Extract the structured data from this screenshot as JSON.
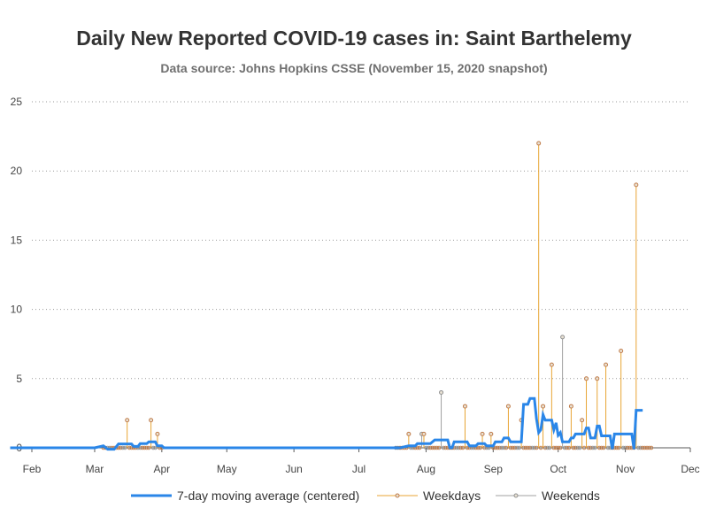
{
  "chart_data": {
    "type": "line",
    "title": "Daily New Reported COVID-19 cases in: Saint Barthelemy",
    "subtitle": "Data source: Johns Hopkins CSSE (November 15, 2020 snapshot)",
    "xlabel": "",
    "ylabel": "",
    "xlim": [
      "2020-02-01",
      "2020-12-01"
    ],
    "ylim": [
      0,
      25
    ],
    "y_ticks": [
      0,
      5,
      10,
      15,
      20,
      25
    ],
    "x_ticks": [
      {
        "date": "2020-02-01",
        "label": "Feb"
      },
      {
        "date": "2020-03-01",
        "label": "Mar"
      },
      {
        "date": "2020-04-01",
        "label": "Apr"
      },
      {
        "date": "2020-05-01",
        "label": "May"
      },
      {
        "date": "2020-06-01",
        "label": "Jun"
      },
      {
        "date": "2020-07-01",
        "label": "Jul"
      },
      {
        "date": "2020-08-01",
        "label": "Aug"
      },
      {
        "date": "2020-09-01",
        "label": "Sep"
      },
      {
        "date": "2020-10-01",
        "label": "Oct"
      },
      {
        "date": "2020-11-01",
        "label": "Nov"
      },
      {
        "date": "2020-12-01",
        "label": "Dec"
      }
    ],
    "grid": "horizontal dotted",
    "legend_position": "bottom",
    "series": [
      {
        "name": "7-day moving average (centered)",
        "style": "line",
        "color": "#2a86e8",
        "points": [
          [
            "2020-01-22",
            0
          ],
          [
            "2020-03-01",
            0
          ],
          [
            "2020-03-05",
            0.14
          ],
          [
            "2020-03-07",
            -0.1
          ],
          [
            "2020-03-10",
            -0.1
          ],
          [
            "2020-03-12",
            0.28
          ],
          [
            "2020-03-18",
            0.28
          ],
          [
            "2020-03-19",
            0.1
          ],
          [
            "2020-03-21",
            0.1
          ],
          [
            "2020-03-22",
            0.3
          ],
          [
            "2020-03-25",
            0.3
          ],
          [
            "2020-03-26",
            0.43
          ],
          [
            "2020-03-29",
            0.43
          ],
          [
            "2020-03-30",
            0.14
          ],
          [
            "2020-04-01",
            0.14
          ],
          [
            "2020-04-02",
            0
          ],
          [
            "2020-07-20",
            0
          ],
          [
            "2020-07-24",
            0.14
          ],
          [
            "2020-07-27",
            0.14
          ],
          [
            "2020-07-28",
            0.3
          ],
          [
            "2020-08-03",
            0.3
          ],
          [
            "2020-08-05",
            0.57
          ],
          [
            "2020-08-11",
            0.57
          ],
          [
            "2020-08-12",
            0
          ],
          [
            "2020-08-13",
            0
          ],
          [
            "2020-08-14",
            0.43
          ],
          [
            "2020-08-20",
            0.43
          ],
          [
            "2020-08-21",
            0.14
          ],
          [
            "2020-08-24",
            0.14
          ],
          [
            "2020-08-25",
            0.3
          ],
          [
            "2020-08-28",
            0.3
          ],
          [
            "2020-08-29",
            0.14
          ],
          [
            "2020-09-01",
            0.14
          ],
          [
            "2020-09-02",
            0.43
          ],
          [
            "2020-09-05",
            0.43
          ],
          [
            "2020-09-06",
            0.71
          ],
          [
            "2020-09-08",
            0.71
          ],
          [
            "2020-09-09",
            0.43
          ],
          [
            "2020-09-14",
            0.43
          ],
          [
            "2020-09-15",
            3.14
          ],
          [
            "2020-09-17",
            3.14
          ],
          [
            "2020-09-18",
            3.57
          ],
          [
            "2020-09-20",
            3.57
          ],
          [
            "2020-09-21",
            2.1
          ],
          [
            "2020-09-22",
            1.1
          ],
          [
            "2020-09-23",
            1.3
          ],
          [
            "2020-09-24",
            2.4
          ],
          [
            "2020-09-25",
            2.0
          ],
          [
            "2020-09-28",
            2.0
          ],
          [
            "2020-09-29",
            1.3
          ],
          [
            "2020-09-30",
            1.8
          ],
          [
            "2020-10-01",
            0.9
          ],
          [
            "2020-10-02",
            1.1
          ],
          [
            "2020-10-03",
            0.43
          ],
          [
            "2020-10-06",
            0.43
          ],
          [
            "2020-10-07",
            0.71
          ],
          [
            "2020-10-08",
            0.71
          ],
          [
            "2020-10-09",
            1.0
          ],
          [
            "2020-10-13",
            1.0
          ],
          [
            "2020-10-14",
            1.43
          ],
          [
            "2020-10-15",
            1.43
          ],
          [
            "2020-10-16",
            0.71
          ],
          [
            "2020-10-18",
            0.71
          ],
          [
            "2020-10-19",
            1.57
          ],
          [
            "2020-10-20",
            1.57
          ],
          [
            "2020-10-21",
            0.86
          ],
          [
            "2020-10-25",
            0.86
          ],
          [
            "2020-10-26",
            -0.1
          ],
          [
            "2020-10-27",
            1.0
          ],
          [
            "2020-11-04",
            1.0
          ],
          [
            "2020-11-05",
            -0.1
          ],
          [
            "2020-11-06",
            2.71
          ],
          [
            "2020-11-09",
            2.71
          ]
        ]
      },
      {
        "name": "Weekdays",
        "style": "needle",
        "color": "#e8a534",
        "marker_color": "#c07c4a",
        "points": [
          [
            "2020-03-16",
            2
          ],
          [
            "2020-03-27",
            2
          ],
          [
            "2020-03-30",
            1
          ],
          [
            "2020-07-24",
            1
          ],
          [
            "2020-07-31",
            1
          ],
          [
            "2020-08-19",
            3
          ],
          [
            "2020-08-27",
            1
          ],
          [
            "2020-08-31",
            1
          ],
          [
            "2020-09-08",
            3
          ],
          [
            "2020-09-14",
            2
          ],
          [
            "2020-09-22",
            22
          ],
          [
            "2020-09-24",
            3
          ],
          [
            "2020-09-28",
            6
          ],
          [
            "2020-10-07",
            3
          ],
          [
            "2020-10-12",
            2
          ],
          [
            "2020-10-14",
            5
          ],
          [
            "2020-10-19",
            5
          ],
          [
            "2020-10-23",
            6
          ],
          [
            "2020-10-30",
            7
          ],
          [
            "2020-11-06",
            19
          ]
        ]
      },
      {
        "name": "Weekends",
        "style": "needle",
        "color": "#a0a0a0",
        "marker_color": "#909090",
        "points": [
          [
            "2020-07-30",
            1
          ],
          [
            "2020-08-08",
            4
          ],
          [
            "2020-10-03",
            8
          ]
        ]
      }
    ],
    "zero_markers": {
      "ranges": [
        [
          "2020-03-05",
          "2020-04-01"
        ],
        [
          "2020-07-18",
          "2020-11-13"
        ]
      ],
      "step_days": 1
    }
  }
}
